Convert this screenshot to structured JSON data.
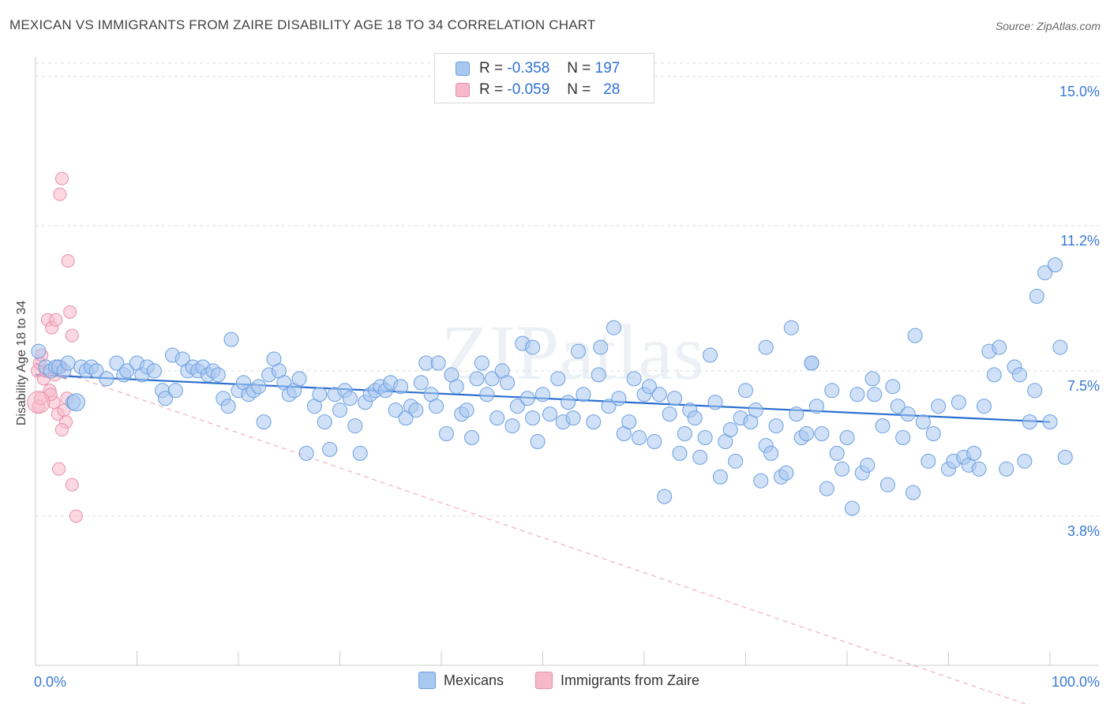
{
  "header": {
    "title": "MEXICAN VS IMMIGRANTS FROM ZAIRE DISABILITY AGE 18 TO 34 CORRELATION CHART",
    "source": "Source: ZipAtlas.com"
  },
  "legend_top": {
    "rows": [
      {
        "r_label": "R =",
        "r_value": "-0.358",
        "n_label": "N =",
        "n_value": "197"
      },
      {
        "r_label": "R =",
        "r_value": "-0.059",
        "n_label": "N =",
        "n_value": "28"
      }
    ]
  },
  "legend_bottom": {
    "items": [
      {
        "label": "Mexicans"
      },
      {
        "label": "Immigrants from Zaire"
      }
    ]
  },
  "colors": {
    "blue_fill": "#a9c8f0",
    "blue_stroke": "#6a9ee0",
    "blue_line": "#2a6fd0",
    "pink_fill": "#f7b8cb",
    "pink_stroke": "#e890ab",
    "pink_line": "#e0607f",
    "tick_label": "#3a78d6"
  },
  "watermark": "ZIPatlas",
  "chart_data": {
    "type": "scatter",
    "title": "MEXICAN VS IMMIGRANTS FROM ZAIRE DISABILITY AGE 18 TO 34 CORRELATION CHART",
    "xlabel": "",
    "ylabel": "Disability Age 18 to 34",
    "xlim": [
      0,
      100
    ],
    "ylim": [
      0,
      15.5
    ],
    "x_tick_labels": [
      "0.0%",
      "100.0%"
    ],
    "y_ticks": [
      3.8,
      7.5,
      11.2,
      15.0
    ],
    "y_tick_labels": [
      "3.8%",
      "7.5%",
      "11.2%",
      "15.0%"
    ],
    "grid": true,
    "legend": "top-center",
    "series": [
      {
        "name": "Mexicans",
        "color": "#a9c8f0",
        "trend": {
          "x": [
            0,
            100
          ],
          "y": [
            7.4,
            6.2
          ]
        },
        "points": [
          [
            0.3,
            8.0
          ],
          [
            1.0,
            7.6
          ],
          [
            1.5,
            7.5
          ],
          [
            2.0,
            7.6
          ],
          [
            2.3,
            7.6
          ],
          [
            2.8,
            7.5
          ],
          [
            3.2,
            7.7
          ],
          [
            3.7,
            6.7
          ],
          [
            4.5,
            7.6
          ],
          [
            5.0,
            7.5
          ],
          [
            5.5,
            7.6
          ],
          [
            6.0,
            7.5
          ],
          [
            7.0,
            7.3
          ],
          [
            8.0,
            7.7
          ],
          [
            8.7,
            7.4
          ],
          [
            9.0,
            7.5
          ],
          [
            10.0,
            7.7
          ],
          [
            10.5,
            7.4
          ],
          [
            11.0,
            7.6
          ],
          [
            11.7,
            7.5
          ],
          [
            12.5,
            7.0
          ],
          [
            12.8,
            6.8
          ],
          [
            13.5,
            7.9
          ],
          [
            13.8,
            7.0
          ],
          [
            14.5,
            7.8
          ],
          [
            15.0,
            7.5
          ],
          [
            15.5,
            7.6
          ],
          [
            16.0,
            7.5
          ],
          [
            16.5,
            7.6
          ],
          [
            17.0,
            7.4
          ],
          [
            17.5,
            7.5
          ],
          [
            18.0,
            7.4
          ],
          [
            18.5,
            6.8
          ],
          [
            19.0,
            6.6
          ],
          [
            19.3,
            8.3
          ],
          [
            20.0,
            7.0
          ],
          [
            20.5,
            7.2
          ],
          [
            21.0,
            6.9
          ],
          [
            21.5,
            7.0
          ],
          [
            22.0,
            7.1
          ],
          [
            22.5,
            6.2
          ],
          [
            23.5,
            7.8
          ],
          [
            23.0,
            7.4
          ],
          [
            24.0,
            7.5
          ],
          [
            24.5,
            7.2
          ],
          [
            25.0,
            6.9
          ],
          [
            25.5,
            7.0
          ],
          [
            26.0,
            7.3
          ],
          [
            26.7,
            5.4
          ],
          [
            27.5,
            6.6
          ],
          [
            28.0,
            6.9
          ],
          [
            28.5,
            6.2
          ],
          [
            29.0,
            5.5
          ],
          [
            29.5,
            6.9
          ],
          [
            30.0,
            6.5
          ],
          [
            30.5,
            7.0
          ],
          [
            31.0,
            6.8
          ],
          [
            31.5,
            6.1
          ],
          [
            32.0,
            5.4
          ],
          [
            32.5,
            6.7
          ],
          [
            33.0,
            6.9
          ],
          [
            33.5,
            7.0
          ],
          [
            34.0,
            7.1
          ],
          [
            34.5,
            7.0
          ],
          [
            35.0,
            7.2
          ],
          [
            35.5,
            6.5
          ],
          [
            36.0,
            7.1
          ],
          [
            36.5,
            6.3
          ],
          [
            37.0,
            6.6
          ],
          [
            37.5,
            6.5
          ],
          [
            38.0,
            7.2
          ],
          [
            38.5,
            7.7
          ],
          [
            39.0,
            6.9
          ],
          [
            39.5,
            6.6
          ],
          [
            39.7,
            7.7
          ],
          [
            40.5,
            5.9
          ],
          [
            41.0,
            7.4
          ],
          [
            41.5,
            7.1
          ],
          [
            42.0,
            6.4
          ],
          [
            42.5,
            6.5
          ],
          [
            43.0,
            5.8
          ],
          [
            43.5,
            7.3
          ],
          [
            44.0,
            7.7
          ],
          [
            44.5,
            6.9
          ],
          [
            45.0,
            7.3
          ],
          [
            45.5,
            6.3
          ],
          [
            46.0,
            7.5
          ],
          [
            46.5,
            7.2
          ],
          [
            47.0,
            6.1
          ],
          [
            47.5,
            6.6
          ],
          [
            48.0,
            8.2
          ],
          [
            48.5,
            6.8
          ],
          [
            49.0,
            6.3
          ],
          [
            49.5,
            5.7
          ],
          [
            50.0,
            6.9
          ],
          [
            50.7,
            6.4
          ],
          [
            51.5,
            7.3
          ],
          [
            52.0,
            6.2
          ],
          [
            52.5,
            6.7
          ],
          [
            53.0,
            6.3
          ],
          [
            53.5,
            8.0
          ],
          [
            54.0,
            6.9
          ],
          [
            55.0,
            6.2
          ],
          [
            55.5,
            7.4
          ],
          [
            55.7,
            8.1
          ],
          [
            56.5,
            6.6
          ],
          [
            57.0,
            8.6
          ],
          [
            57.5,
            6.8
          ],
          [
            58.0,
            5.9
          ],
          [
            58.5,
            6.2
          ],
          [
            59.0,
            7.3
          ],
          [
            59.5,
            5.8
          ],
          [
            60.0,
            6.9
          ],
          [
            60.5,
            7.1
          ],
          [
            61.0,
            5.7
          ],
          [
            61.5,
            6.9
          ],
          [
            62.0,
            4.3
          ],
          [
            62.5,
            6.4
          ],
          [
            63.0,
            6.8
          ],
          [
            63.5,
            5.4
          ],
          [
            64.0,
            5.9
          ],
          [
            64.5,
            6.5
          ],
          [
            65.0,
            6.3
          ],
          [
            65.5,
            5.3
          ],
          [
            66.0,
            5.8
          ],
          [
            66.5,
            7.9
          ],
          [
            67.0,
            6.7
          ],
          [
            67.5,
            4.8
          ],
          [
            68.0,
            5.7
          ],
          [
            68.5,
            6.0
          ],
          [
            69.0,
            5.2
          ],
          [
            69.5,
            6.3
          ],
          [
            70.0,
            7.0
          ],
          [
            70.5,
            6.2
          ],
          [
            71.0,
            6.5
          ],
          [
            71.5,
            4.7
          ],
          [
            72.0,
            5.6
          ],
          [
            72.5,
            5.4
          ],
          [
            73.0,
            6.1
          ],
          [
            73.5,
            4.8
          ],
          [
            74.0,
            4.9
          ],
          [
            74.5,
            8.6
          ],
          [
            75.0,
            6.4
          ],
          [
            75.5,
            5.8
          ],
          [
            76.0,
            5.9
          ],
          [
            76.5,
            7.7
          ],
          [
            77.0,
            6.6
          ],
          [
            77.5,
            5.9
          ],
          [
            78.0,
            4.5
          ],
          [
            78.5,
            7.0
          ],
          [
            79.0,
            5.4
          ],
          [
            79.5,
            5.0
          ],
          [
            80.0,
            5.8
          ],
          [
            80.5,
            4.0
          ],
          [
            81.0,
            6.9
          ],
          [
            81.5,
            4.9
          ],
          [
            82.0,
            5.1
          ],
          [
            82.5,
            7.3
          ],
          [
            82.7,
            6.9
          ],
          [
            83.5,
            6.1
          ],
          [
            84.0,
            4.6
          ],
          [
            84.5,
            7.1
          ],
          [
            85.0,
            6.6
          ],
          [
            85.5,
            5.8
          ],
          [
            86.0,
            6.4
          ],
          [
            86.5,
            4.4
          ],
          [
            86.7,
            8.4
          ],
          [
            87.5,
            6.2
          ],
          [
            88.0,
            5.2
          ],
          [
            88.5,
            5.9
          ],
          [
            89.0,
            6.6
          ],
          [
            90.0,
            5.0
          ],
          [
            90.5,
            5.2
          ],
          [
            91.0,
            6.7
          ],
          [
            91.5,
            5.3
          ],
          [
            92.0,
            5.1
          ],
          [
            92.5,
            5.4
          ],
          [
            93.0,
            5.0
          ],
          [
            93.5,
            6.6
          ],
          [
            94.0,
            8.0
          ],
          [
            94.5,
            7.4
          ],
          [
            95.0,
            8.1
          ],
          [
            95.7,
            5.0
          ],
          [
            96.5,
            7.6
          ],
          [
            97.0,
            7.4
          ],
          [
            97.5,
            5.2
          ],
          [
            98.0,
            6.2
          ],
          [
            98.5,
            7.0
          ],
          [
            98.7,
            9.4
          ],
          [
            99.5,
            10.0
          ],
          [
            100.0,
            6.2
          ],
          [
            100.5,
            10.2
          ],
          [
            101.0,
            8.1
          ],
          [
            101.5,
            5.3
          ],
          [
            76.5,
            7.7
          ],
          [
            72.0,
            8.1
          ],
          [
            49.0,
            8.1
          ]
        ]
      },
      {
        "name": "Immigrants from Zaire",
        "color": "#f7b8cb",
        "trend": {
          "x": [
            0,
            3
          ],
          "y": [
            7.7,
            7.3
          ]
        },
        "trend_dashed": {
          "x": [
            0,
            100
          ],
          "y": [
            7.7,
            -1.2
          ]
        },
        "points": [
          [
            0.2,
            7.5
          ],
          [
            0.3,
            6.6
          ],
          [
            0.4,
            7.7
          ],
          [
            0.5,
            6.8
          ],
          [
            0.6,
            7.9
          ],
          [
            0.8,
            7.3
          ],
          [
            1.0,
            7.5
          ],
          [
            1.2,
            8.8
          ],
          [
            1.4,
            7.0
          ],
          [
            1.6,
            8.6
          ],
          [
            1.8,
            6.7
          ],
          [
            2.0,
            8.8
          ],
          [
            2.2,
            6.4
          ],
          [
            2.4,
            12.0
          ],
          [
            2.6,
            12.4
          ],
          [
            2.8,
            6.5
          ],
          [
            3.0,
            6.2
          ],
          [
            3.2,
            10.3
          ],
          [
            3.4,
            9.0
          ],
          [
            3.6,
            8.4
          ],
          [
            1.5,
            6.9
          ],
          [
            2.3,
            5.0
          ],
          [
            2.6,
            6.0
          ],
          [
            3.1,
            6.8
          ],
          [
            3.6,
            4.6
          ],
          [
            4.0,
            3.8
          ],
          [
            1.9,
            7.4
          ],
          [
            2.5,
            7.6
          ]
        ]
      }
    ]
  }
}
